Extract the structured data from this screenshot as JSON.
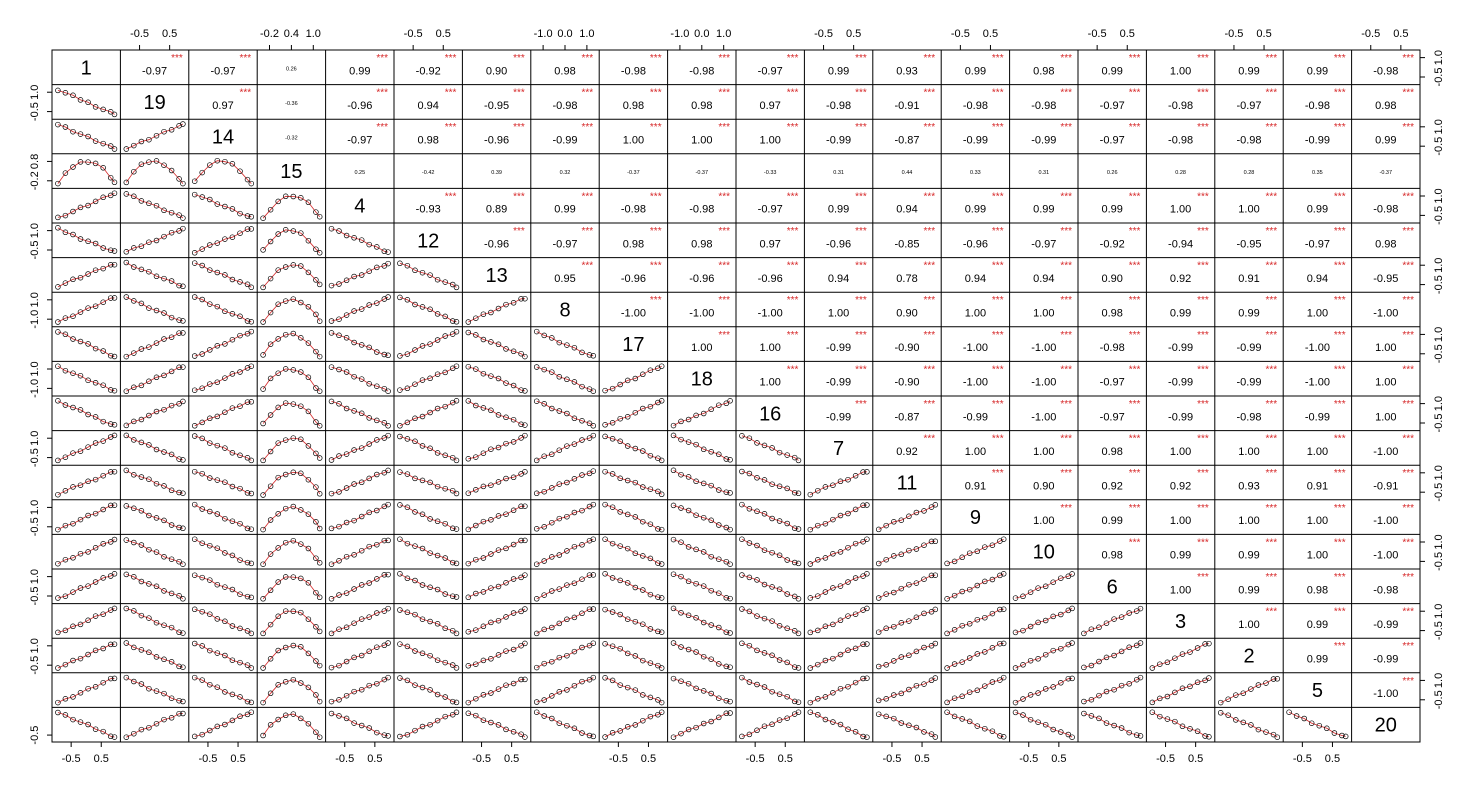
{
  "chart_data": {
    "type": "scatter",
    "variables": [
      "1",
      "19",
      "14",
      "15",
      "4",
      "12",
      "13",
      "8",
      "17",
      "18",
      "16",
      "7",
      "11",
      "9",
      "10",
      "6",
      "3",
      "2",
      "5",
      "20"
    ],
    "correlations": [
      [
        "-0.97",
        "-0.97",
        "0.26",
        "0.99",
        "-0.92",
        "0.90",
        "0.98",
        "-0.98",
        "-0.98",
        "-0.97",
        "0.99",
        "0.93",
        "0.99",
        "0.98",
        "0.99",
        "1.00",
        "0.99",
        "0.99",
        "-0.98"
      ],
      [
        "0.97",
        "-0.36",
        "-0.96",
        "0.94",
        "-0.95",
        "-0.98",
        "0.98",
        "0.98",
        "0.97",
        "-0.98",
        "-0.91",
        "-0.98",
        "-0.98",
        "-0.97",
        "-0.98",
        "-0.97",
        "-0.98",
        "0.98"
      ],
      [
        "-0.32",
        "-0.97",
        "0.98",
        "-0.96",
        "-0.99",
        "1.00",
        "1.00",
        "1.00",
        "-0.99",
        "-0.87",
        "-0.99",
        "-0.99",
        "-0.97",
        "-0.98",
        "-0.98",
        "-0.99",
        "0.99"
      ],
      [
        "0.25",
        "-0.42",
        "0.39",
        "0.32",
        "-0.37",
        "-0.37",
        "-0.33",
        "0.31",
        "0.44",
        "0.33",
        "0.31",
        "0.26",
        "0.28",
        "0.28",
        "0.35",
        "-0.37"
      ],
      [
        "-0.93",
        "0.89",
        "0.99",
        "-0.98",
        "-0.98",
        "-0.97",
        "0.99",
        "0.94",
        "0.99",
        "0.99",
        "0.99",
        "1.00",
        "1.00",
        "0.99",
        "-0.98"
      ],
      [
        "-0.96",
        "-0.97",
        "0.98",
        "0.98",
        "0.97",
        "-0.96",
        "-0.85",
        "-0.96",
        "-0.97",
        "-0.92",
        "-0.94",
        "-0.95",
        "-0.97",
        "0.98"
      ],
      [
        "0.95",
        "-0.96",
        "-0.96",
        "-0.96",
        "0.94",
        "0.78",
        "0.94",
        "0.94",
        "0.90",
        "0.92",
        "0.91",
        "0.94",
        "-0.95"
      ],
      [
        "-1.00",
        "-1.00",
        "-1.00",
        "1.00",
        "0.90",
        "1.00",
        "1.00",
        "0.98",
        "0.99",
        "0.99",
        "1.00",
        "-1.00"
      ],
      [
        "1.00",
        "1.00",
        "-0.99",
        "-0.90",
        "-1.00",
        "-1.00",
        "-0.98",
        "-0.99",
        "-0.99",
        "-1.00",
        "1.00"
      ],
      [
        "1.00",
        "-0.99",
        "-0.90",
        "-1.00",
        "-1.00",
        "-0.97",
        "-0.99",
        "-0.99",
        "-1.00",
        "1.00"
      ],
      [
        "-0.99",
        "-0.87",
        "-0.99",
        "-1.00",
        "-0.97",
        "-0.99",
        "-0.98",
        "-0.99",
        "1.00"
      ],
      [
        "0.92",
        "1.00",
        "1.00",
        "0.98",
        "1.00",
        "1.00",
        "1.00",
        "-1.00"
      ],
      [
        "0.91",
        "0.90",
        "0.92",
        "0.92",
        "0.93",
        "0.91",
        "-0.91"
      ],
      [
        "1.00",
        "0.99",
        "1.00",
        "1.00",
        "1.00",
        "-1.00"
      ],
      [
        "0.98",
        "0.99",
        "0.99",
        "1.00",
        "-1.00"
      ],
      [
        "1.00",
        "0.99",
        "0.98",
        "-0.98"
      ],
      [
        "1.00",
        "0.99",
        "-0.99"
      ],
      [
        "0.99",
        "-0.99"
      ],
      [
        "-1.00"
      ]
    ],
    "significance": "***",
    "nonsignificant_pairs": [
      [
        "1",
        "15"
      ],
      [
        "19",
        "15"
      ],
      [
        "14",
        "15"
      ],
      [
        "15",
        "4"
      ],
      [
        "15",
        "12"
      ],
      [
        "15",
        "13"
      ],
      [
        "15",
        "8"
      ],
      [
        "15",
        "17"
      ],
      [
        "15",
        "18"
      ],
      [
        "15",
        "16"
      ],
      [
        "15",
        "7"
      ],
      [
        "15",
        "11"
      ],
      [
        "15",
        "9"
      ],
      [
        "15",
        "10"
      ],
      [
        "15",
        "6"
      ],
      [
        "15",
        "3"
      ],
      [
        "15",
        "2"
      ],
      [
        "15",
        "5"
      ],
      [
        "15",
        "20"
      ]
    ],
    "x_tick_labels": {
      "top": [
        {
          "column": "19",
          "labels": [
            "-0.5",
            "0.5"
          ]
        },
        {
          "column": "15",
          "labels": [
            "-0.2",
            "0.4",
            "1.0"
          ]
        },
        {
          "column": "12",
          "labels": [
            "-0.5",
            "0.5"
          ]
        },
        {
          "column": "8",
          "labels": [
            "-1.0",
            "0.0",
            "1.0"
          ]
        },
        {
          "column": "18",
          "labels": [
            "-1.0",
            "0.0",
            "1.0"
          ]
        },
        {
          "column": "7",
          "labels": [
            "-0.5",
            "0.5"
          ]
        },
        {
          "column": "9",
          "labels": [
            "-0.5",
            "0.5"
          ]
        },
        {
          "column": "6",
          "labels": [
            "-0.5",
            "0.5"
          ]
        },
        {
          "column": "2",
          "labels": [
            "-0.5",
            "0.5"
          ]
        },
        {
          "column": "20",
          "labels": [
            "-0.5",
            "0.5"
          ]
        }
      ],
      "bottom": [
        {
          "column": "1",
          "labels": [
            "-0.5",
            "0.5"
          ]
        },
        {
          "column": "14",
          "labels": [
            "-0.5",
            "0.5"
          ]
        },
        {
          "column": "4",
          "labels": [
            "-0.5",
            "0.5"
          ]
        },
        {
          "column": "13",
          "labels": [
            "-0.5",
            "0.5"
          ]
        },
        {
          "column": "17",
          "labels": [
            "-0.5",
            "0.5"
          ]
        },
        {
          "column": "16",
          "labels": [
            "-0.5",
            "0.5"
          ]
        },
        {
          "column": "11",
          "labels": [
            "-0.5",
            "0.5"
          ]
        },
        {
          "column": "10",
          "labels": [
            "-0.5",
            "0.5"
          ]
        },
        {
          "column": "3",
          "labels": [
            "-0.5",
            "0.5"
          ]
        },
        {
          "column": "5",
          "labels": [
            "-0.5",
            "0.5"
          ]
        }
      ]
    },
    "y_tick_labels": {
      "left": [
        {
          "row": "19",
          "labels": [
            "-0.5",
            "1.0"
          ]
        },
        {
          "row": "15",
          "labels": [
            "-0.2",
            "0.8"
          ]
        },
        {
          "row": "12",
          "labels": [
            "-0.5",
            "1.0"
          ]
        },
        {
          "row": "8",
          "labels": [
            "-1.0",
            "1.0"
          ]
        },
        {
          "row": "18",
          "labels": [
            "-1.0",
            "1.0"
          ]
        },
        {
          "row": "7",
          "labels": [
            "-0.5",
            "1.0"
          ]
        },
        {
          "row": "9",
          "labels": [
            "-0.5",
            "1.0"
          ]
        },
        {
          "row": "6",
          "labels": [
            "-0.5",
            "1.0"
          ]
        },
        {
          "row": "2",
          "labels": [
            "-0.5",
            "1.0"
          ]
        },
        {
          "row": "20",
          "labels": [
            "-0.5"
          ]
        }
      ],
      "right": [
        {
          "row": "1",
          "labels": [
            "-0.5",
            "1.0"
          ]
        },
        {
          "row": "14",
          "labels": [
            "-0.5",
            "1.0"
          ]
        },
        {
          "row": "4",
          "labels": [
            "-0.5",
            "1.0"
          ]
        },
        {
          "row": "13",
          "labels": [
            "-0.5",
            "1.0"
          ]
        },
        {
          "row": "17",
          "labels": [
            "-0.5",
            "1.0"
          ]
        },
        {
          "row": "16",
          "labels": [
            "-0.5",
            "1.0"
          ]
        },
        {
          "row": "11",
          "labels": [
            "-0.5",
            "1.0"
          ]
        },
        {
          "row": "10",
          "labels": [
            "-0.5",
            "1.0"
          ]
        },
        {
          "row": "3",
          "labels": [
            "-0.5",
            "1.0"
          ]
        },
        {
          "row": "5",
          "labels": [
            "-0.5",
            "1.0"
          ]
        }
      ]
    },
    "axis_range": [
      -0.8,
      0.8
    ],
    "colors": {
      "points": "#000000",
      "smooth_line": "#d62728",
      "stars": "#d62728",
      "frame": "#000000"
    }
  }
}
